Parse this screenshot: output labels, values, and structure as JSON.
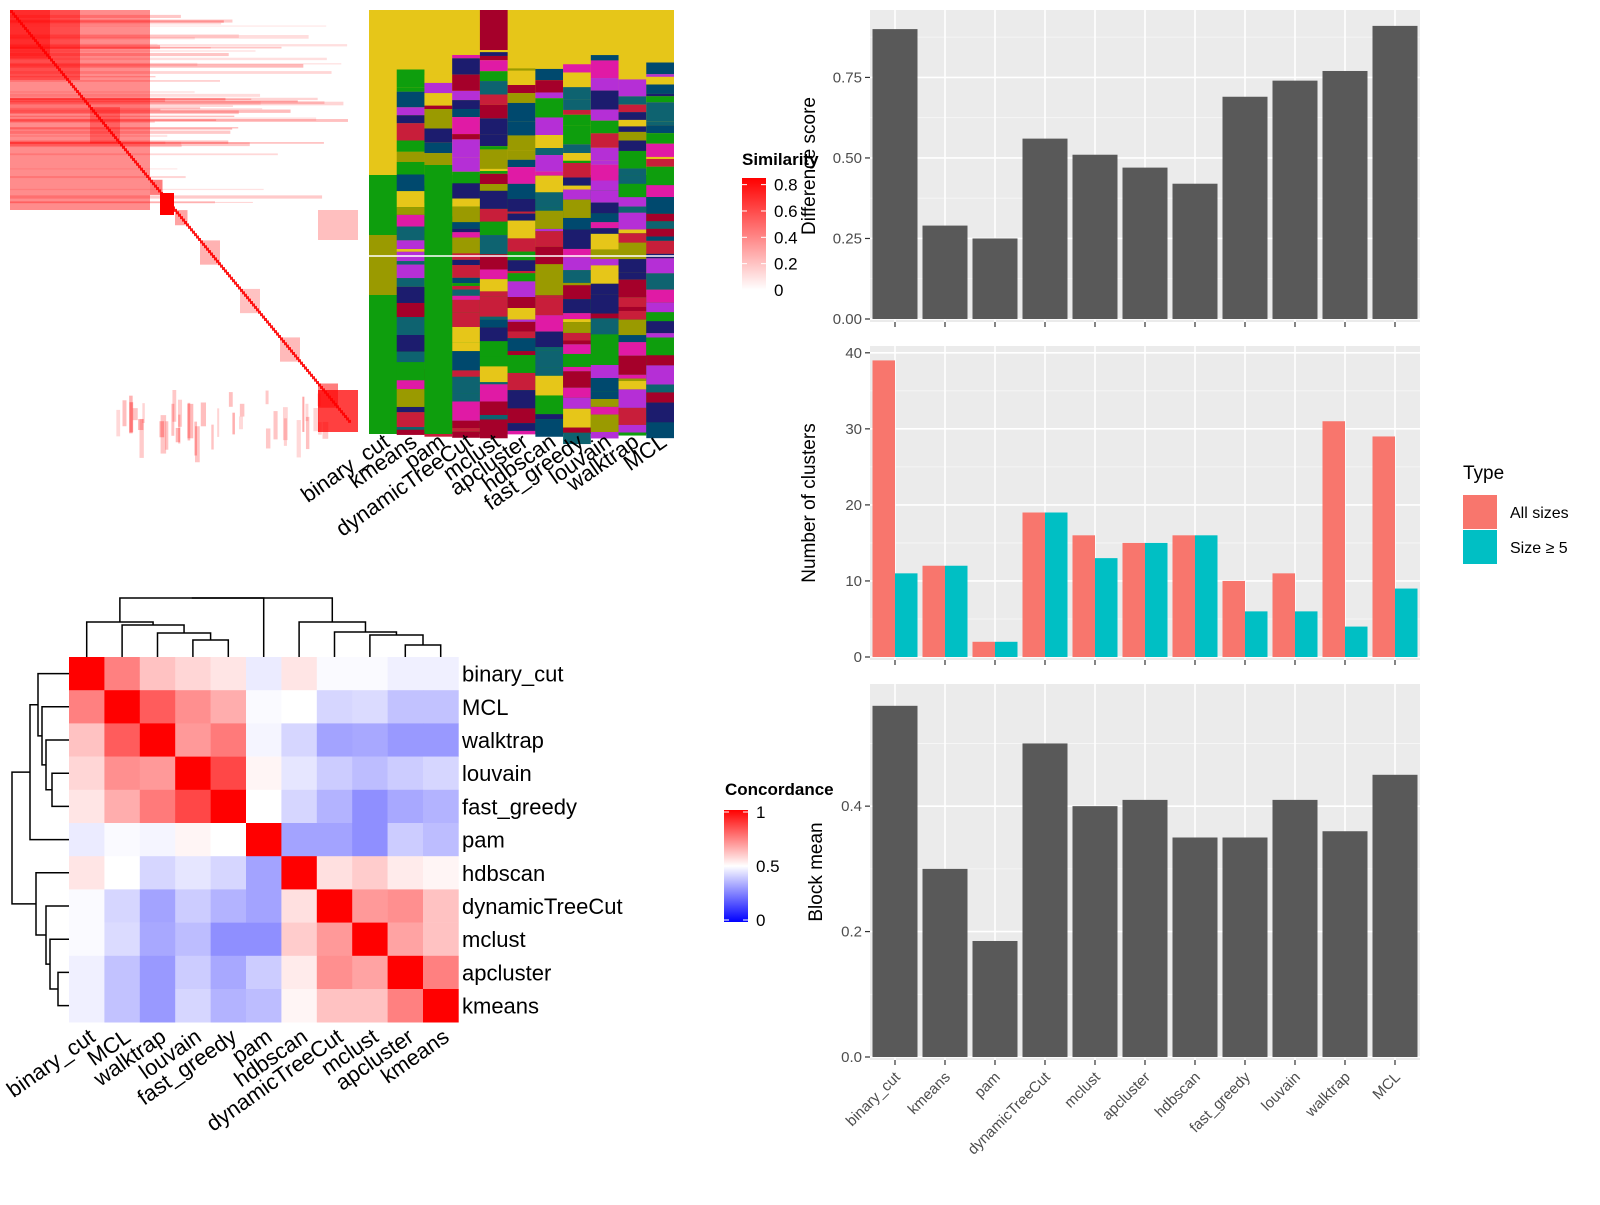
{
  "colors": {
    "panel_bg": "#ebebeb",
    "bar_dark": "#595959",
    "all_sizes": "#f8766d",
    "size_ge5": "#00bfc4",
    "heat_red": "#ff0000",
    "heat_white": "#ffffff",
    "heat_blue": "#0000ff",
    "label_palette": [
      "#e6c619",
      "#00496e",
      "#0e9e0d",
      "#a5002a",
      "#9a9a00",
      "#e01aa5",
      "#1c1c6e",
      "#0e6370",
      "#b52fd6",
      "#c81e3a"
    ]
  },
  "heatmap_top": {
    "legend_title": "Similarity",
    "legend_ticks": [
      "0.8",
      "0.6",
      "0.4",
      "0.2",
      "0"
    ],
    "method_labels": [
      "binary_cut",
      "kmeans",
      "pam",
      "dynamicTreeCut",
      "mclust",
      "apcluster",
      "hdbscan",
      "fast_greedy",
      "louvain",
      "walktrap",
      "MCL"
    ]
  },
  "heatmap_bottom": {
    "legend_title": "Concordance",
    "legend_ticks": [
      "1",
      "0.5",
      "0"
    ],
    "row_labels": [
      "binary_cut",
      "MCL",
      "walktrap",
      "louvain",
      "fast_greedy",
      "pam",
      "hdbscan",
      "dynamicTreeCut",
      "mclust",
      "apcluster",
      "kmeans"
    ],
    "col_labels": [
      "binary_cut",
      "MCL",
      "walktrap",
      "louvain",
      "fast_greedy",
      "pam",
      "hdbscan",
      "dynamicTreeCut",
      "mclust",
      "apcluster",
      "kmeans"
    ],
    "matrix": [
      [
        1.0,
        0.75,
        0.62,
        0.58,
        0.55,
        0.46,
        0.55,
        0.49,
        0.49,
        0.47,
        0.47
      ],
      [
        0.75,
        1.0,
        0.82,
        0.72,
        0.66,
        0.49,
        0.5,
        0.42,
        0.43,
        0.38,
        0.38
      ],
      [
        0.62,
        0.82,
        1.0,
        0.7,
        0.76,
        0.48,
        0.42,
        0.32,
        0.33,
        0.3,
        0.3
      ],
      [
        0.58,
        0.72,
        0.7,
        1.0,
        0.86,
        0.52,
        0.45,
        0.4,
        0.37,
        0.4,
        0.42
      ],
      [
        0.55,
        0.66,
        0.76,
        0.86,
        1.0,
        0.5,
        0.42,
        0.35,
        0.28,
        0.33,
        0.35
      ],
      [
        0.46,
        0.49,
        0.48,
        0.52,
        0.5,
        1.0,
        0.32,
        0.32,
        0.28,
        0.4,
        0.37
      ],
      [
        0.55,
        0.5,
        0.42,
        0.45,
        0.42,
        0.32,
        1.0,
        0.56,
        0.6,
        0.54,
        0.52
      ],
      [
        0.49,
        0.42,
        0.32,
        0.4,
        0.35,
        0.32,
        0.56,
        1.0,
        0.7,
        0.72,
        0.62
      ],
      [
        0.49,
        0.43,
        0.33,
        0.37,
        0.28,
        0.28,
        0.6,
        0.7,
        1.0,
        0.68,
        0.62
      ],
      [
        0.47,
        0.38,
        0.3,
        0.4,
        0.33,
        0.4,
        0.54,
        0.72,
        0.68,
        1.0,
        0.75
      ],
      [
        0.47,
        0.38,
        0.3,
        0.42,
        0.35,
        0.37,
        0.52,
        0.62,
        0.62,
        0.75,
        1.0
      ]
    ]
  },
  "chart_data": [
    {
      "type": "bar",
      "categories": [
        "binary_cut",
        "kmeans",
        "pam",
        "dynamicTreeCut",
        "mclust",
        "apcluster",
        "hdbscan",
        "fast_greedy",
        "louvain",
        "walktrap",
        "MCL"
      ],
      "values": [
        0.9,
        0.29,
        0.25,
        0.56,
        0.51,
        0.47,
        0.42,
        0.69,
        0.74,
        0.77,
        0.91
      ],
      "ylabel": "Difference score",
      "ylim": [
        0,
        0.95
      ],
      "yticks": [
        0,
        0.25,
        0.5,
        0.75
      ],
      "ytick_labels": [
        "0.00",
        "0.25",
        "0.50",
        "0.75"
      ],
      "grid": true
    },
    {
      "type": "bar",
      "categories": [
        "binary_cut",
        "kmeans",
        "pam",
        "dynamicTreeCut",
        "mclust",
        "apcluster",
        "hdbscan",
        "fast_greedy",
        "louvain",
        "walktrap",
        "MCL"
      ],
      "series": [
        {
          "name": "All sizes",
          "values": [
            39,
            12,
            2,
            19,
            16,
            15,
            16,
            10,
            11,
            31,
            29
          ]
        },
        {
          "name": "Size ≥ 5",
          "values": [
            11,
            12,
            2,
            19,
            13,
            15,
            16,
            6,
            6,
            4,
            9
          ]
        }
      ],
      "ylabel": "Number of clusters",
      "ylim": [
        0,
        40.5
      ],
      "yticks": [
        0,
        10,
        20,
        30,
        40
      ],
      "ytick_labels": [
        "0",
        "10",
        "20",
        "30",
        "40"
      ],
      "legend_title": "Type",
      "legend_position": "right",
      "grid": true
    },
    {
      "type": "bar",
      "categories": [
        "binary_cut",
        "kmeans",
        "pam",
        "dynamicTreeCut",
        "mclust",
        "apcluster",
        "hdbscan",
        "fast_greedy",
        "louvain",
        "walktrap",
        "MCL"
      ],
      "values": [
        0.56,
        0.3,
        0.185,
        0.5,
        0.4,
        0.41,
        0.35,
        0.35,
        0.41,
        0.36,
        0.45
      ],
      "ylabel": "Block mean",
      "ylim": [
        0,
        0.59
      ],
      "yticks": [
        0,
        0.2,
        0.4
      ],
      "ytick_labels": [
        "0.0",
        "0.2",
        "0.4"
      ],
      "grid": true
    }
  ]
}
